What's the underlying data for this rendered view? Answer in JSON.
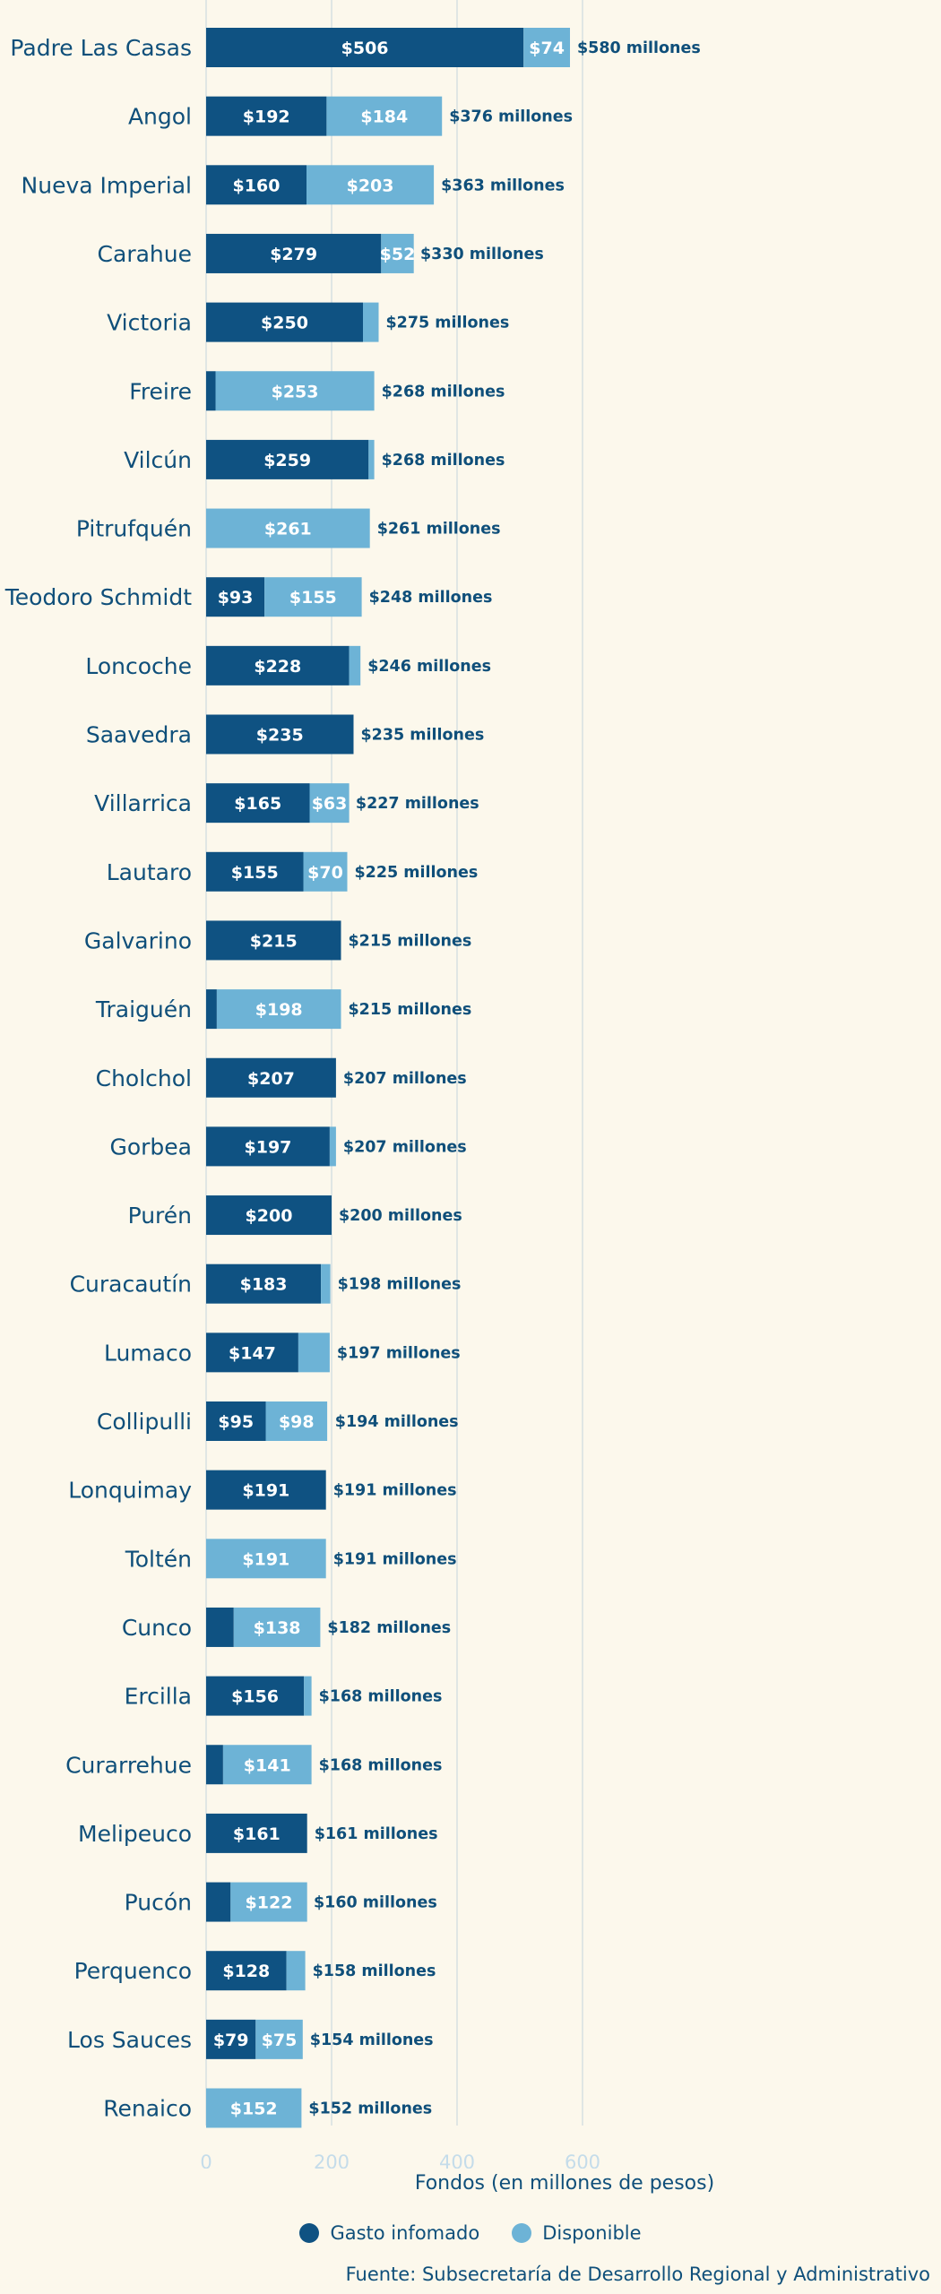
{
  "chart_data": {
    "type": "bar",
    "orientation": "horizontal",
    "stacked": true,
    "xlabel": "Fondos (en millones de pesos)",
    "xlim": [
      0,
      600
    ],
    "xticks": [
      "0",
      "200",
      "400",
      "600"
    ],
    "grid": "vertical",
    "legend_position": "bottom-center",
    "source": "Fuente: Subsecretaría de Desarrollo Regional y Administrativo",
    "total_suffix": " millones",
    "categories": [
      "Padre Las Casas",
      "Angol",
      "Nueva Imperial",
      "Carahue",
      "Victoria",
      "Freire",
      "Vilcún",
      "Pitrufquén",
      "Teodoro Schmidt",
      "Loncoche",
      "Saavedra",
      "Villarrica",
      "Lautaro",
      "Galvarino",
      "Traiguén",
      "Cholchol",
      "Gorbea",
      "Purén",
      "Curacautín",
      "Lumaco",
      "Collipulli",
      "Lonquimay",
      "Toltén",
      "Cunco",
      "Ercilla",
      "Curarrehue",
      "Melipeuco",
      "Pucón",
      "Perquenco",
      "Los Sauces",
      "Renaico"
    ],
    "series": [
      {
        "name": "Gasto infomado",
        "color": "#0f5282",
        "values": [
          506,
          192,
          160,
          279,
          250,
          15,
          259,
          0,
          93,
          228,
          235,
          165,
          155,
          215,
          17,
          207,
          197,
          200,
          183,
          147,
          95,
          191,
          0,
          44,
          156,
          27,
          161,
          39,
          128,
          79,
          0
        ],
        "labels": [
          "$506",
          "$192",
          "$160",
          "$279",
          "$250",
          "",
          "$259",
          "",
          "$93",
          "$228",
          "$235",
          "$165",
          "$155",
          "$215",
          "",
          "$207",
          "$197",
          "$200",
          "$183",
          "$147",
          "$95",
          "$191",
          "",
          "",
          "$156",
          "",
          "$161",
          "",
          "$128",
          "$79",
          ""
        ]
      },
      {
        "name": "Disponible",
        "color": "#6db3d6",
        "values": [
          74,
          184,
          203,
          52,
          25,
          253,
          9,
          261,
          155,
          18,
          0,
          63,
          70,
          0,
          198,
          0,
          10,
          0,
          15,
          50,
          98,
          0,
          191,
          138,
          12,
          141,
          0,
          122,
          30,
          75,
          152
        ],
        "labels": [
          "$74",
          "$184",
          "$203",
          "$52",
          "",
          "$253",
          "",
          "$261",
          "$155",
          "",
          "",
          "$63",
          "$70",
          "",
          "$198",
          "",
          "",
          "",
          "",
          "",
          "$98",
          "",
          "$191",
          "$138",
          "",
          "$141",
          "",
          "$122",
          "",
          "$75",
          "$152"
        ]
      }
    ],
    "totals": [
      580,
      376,
      363,
      330,
      275,
      268,
      268,
      261,
      248,
      246,
      235,
      227,
      225,
      215,
      215,
      207,
      207,
      200,
      198,
      197,
      194,
      191,
      191,
      182,
      168,
      168,
      161,
      160,
      158,
      154,
      152
    ]
  }
}
